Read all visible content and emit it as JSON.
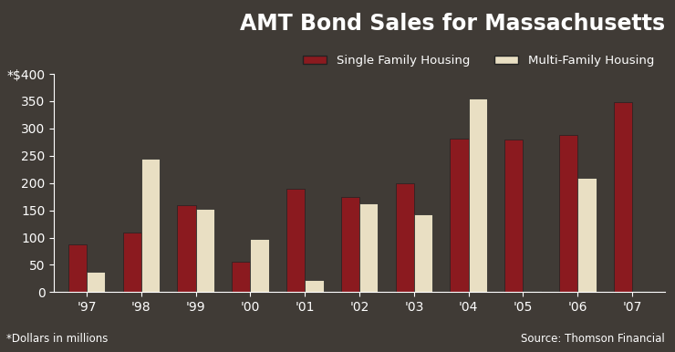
{
  "chart_data": {
    "type": "bar",
    "title": "AMT Bond Sales for Massachusetts",
    "footnote": "*Dollars in millions",
    "source": "Source: Thomson Financial",
    "categories": [
      "'97",
      "'98",
      "'99",
      "'00",
      "'01",
      "'02",
      "'03",
      "'04",
      "'05",
      "'06",
      "'07"
    ],
    "series": [
      {
        "name": "Single Family Housing",
        "color": "#8b1a1f",
        "values": [
          88,
          110,
          160,
          55,
          190,
          175,
          200,
          282,
          280,
          288,
          348
        ]
      },
      {
        "name": "Multi-Family Housing",
        "color": "#e9dfc3",
        "values": [
          38,
          245,
          152,
          98,
          22,
          163,
          143,
          355,
          2,
          210,
          2
        ]
      }
    ],
    "ylim": [
      0,
      400
    ],
    "yticks": [
      0,
      50,
      100,
      150,
      200,
      250,
      300,
      350,
      {
        "value": 400,
        "label": "*$400"
      }
    ],
    "grid": false,
    "legend": "upper right"
  }
}
